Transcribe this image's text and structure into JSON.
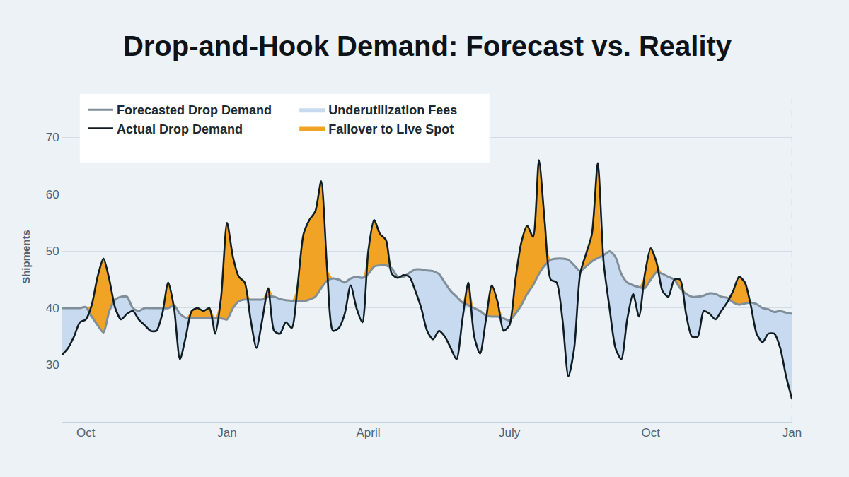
{
  "chart_data": {
    "type": "line",
    "title": "Drop-and-Hook Demand: Forecast vs. Reality",
    "y_label": "Shipments",
    "categories": [
      null,
      null,
      null,
      null,
      "Oct",
      null,
      null,
      null,
      null,
      null,
      null,
      null,
      null,
      null,
      null,
      null,
      null,
      null,
      null,
      null,
      null,
      null,
      null,
      null,
      null,
      null,
      null,
      null,
      "Jan",
      null,
      null,
      null,
      null,
      null,
      null,
      null,
      null,
      null,
      null,
      null,
      null,
      null,
      null,
      null,
      null,
      null,
      null,
      null,
      null,
      null,
      null,
      null,
      "April",
      null,
      null,
      null,
      null,
      null,
      null,
      null,
      null,
      null,
      null,
      null,
      null,
      null,
      null,
      null,
      null,
      null,
      null,
      null,
      null,
      null,
      null,
      null,
      "July",
      null,
      null,
      null,
      null,
      null,
      null,
      null,
      null,
      null,
      null,
      null,
      null,
      null,
      null,
      null,
      null,
      null,
      null,
      null,
      null,
      null,
      null,
      null,
      "Oct",
      null,
      null,
      null,
      null,
      null,
      null,
      null,
      null,
      null,
      null,
      null,
      null,
      null,
      null,
      null,
      null,
      null,
      null,
      null,
      null,
      null,
      null,
      null,
      "Jan"
    ],
    "series": [
      {
        "name": "Forecasted Drop Demand",
        "color": "#7f8e98",
        "values": [
          40,
          40,
          40,
          40,
          40.2,
          38.5,
          37,
          35.7,
          39.5,
          41.5,
          42,
          42,
          40,
          39.5,
          40,
          40,
          40,
          40,
          40,
          40.5,
          39,
          38.3,
          38.3,
          38.3,
          38.3,
          38.3,
          38.3,
          38.2,
          38,
          40,
          41.2,
          41.5,
          41.5,
          41.5,
          41.5,
          42,
          42,
          41.6,
          41.4,
          41.3,
          41.2,
          41.2,
          41.5,
          42,
          43.5,
          44.8,
          45.2,
          45,
          44.5,
          45.2,
          45.5,
          45.3,
          46,
          47.3,
          47.5,
          47.5,
          47,
          45.5,
          45.5,
          46.2,
          46.8,
          46.8,
          46.6,
          46.5,
          46,
          44.5,
          43,
          42,
          41,
          40.5,
          40,
          39.5,
          38.7,
          38.5,
          38.5,
          38.2,
          37.8,
          39,
          40.5,
          42.5,
          44,
          46,
          47.5,
          48.5,
          48.7,
          48.7,
          48.5,
          47.5,
          46.5,
          47.3,
          48.2,
          48.8,
          49.3,
          50,
          49,
          46,
          44.5,
          44,
          43.7,
          43.5,
          45,
          46.3,
          46,
          45.5,
          45,
          43.5,
          42.5,
          42,
          42,
          42.2,
          42.6,
          42.5,
          42,
          41.8,
          41,
          40.6,
          40.8,
          41,
          40.7,
          40,
          39.8,
          39.3,
          39.5,
          39.2,
          39
        ]
      },
      {
        "name": "Actual Drop Demand",
        "color": "#0f1c22",
        "values": [
          31.8,
          33,
          35,
          37.5,
          38,
          40.5,
          45.5,
          48.7,
          45,
          40,
          38,
          39,
          39.5,
          38,
          37,
          36,
          36,
          39,
          44.5,
          40,
          31,
          35,
          39.5,
          40,
          39.5,
          40,
          35.5,
          42,
          55,
          49,
          45.5,
          44.5,
          38,
          33,
          38,
          43.5,
          36,
          35.5,
          37.5,
          36.5,
          44,
          53,
          55.5,
          57,
          62.3,
          47,
          36,
          36.5,
          39,
          44,
          40,
          37.5,
          50,
          55.5,
          53,
          52,
          46,
          45.3,
          45.8,
          45.5,
          43,
          40,
          36,
          34.5,
          36,
          35,
          33,
          31,
          38,
          44.5,
          35,
          32,
          38,
          44,
          41,
          36,
          37,
          45,
          51.5,
          54.5,
          52.5,
          66,
          55,
          45,
          44.5,
          38,
          28,
          33,
          46,
          49.5,
          53,
          65.5,
          48,
          40,
          33,
          31,
          38,
          42.5,
          38.5,
          46,
          50.5,
          48,
          43,
          42,
          45,
          45,
          39,
          35,
          35,
          39.5,
          39,
          38,
          39.5,
          41,
          43,
          45.5,
          44.5,
          40.5,
          35.5,
          34,
          35.5,
          35.5,
          33,
          28,
          24
        ]
      }
    ],
    "fills": {
      "above": {
        "name": "Failover to Live Spot",
        "color": "#f0a324"
      },
      "below": {
        "name": "Underutilization Fees",
        "color": "#c7daef"
      }
    },
    "ylim": [
      20,
      78
    ],
    "yticks": [
      30,
      40,
      50,
      60,
      70
    ],
    "grid": true,
    "legend": "top left",
    "line_style": "smooth"
  }
}
